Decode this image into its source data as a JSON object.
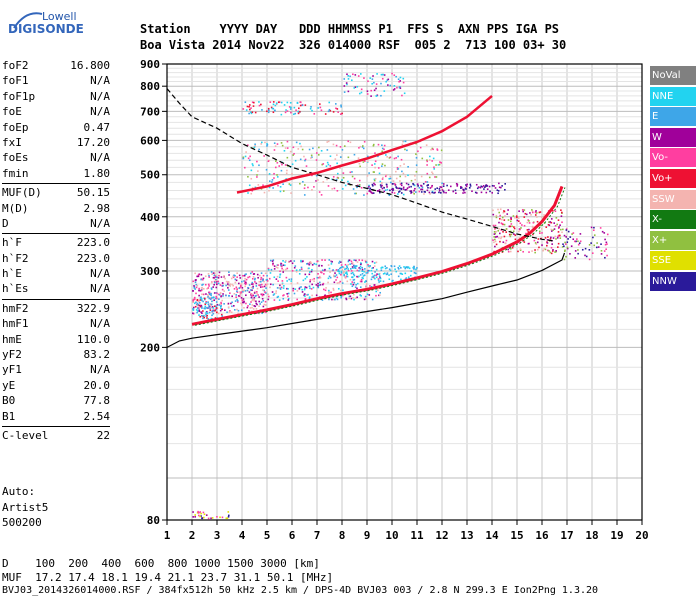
{
  "logo": {
    "line1": "Lowell",
    "line2": "DIGISONDE"
  },
  "header": {
    "labels": "Station    YYYY DAY   DDD HHMMSS P1  FFS S  AXN PPS IGA PS",
    "values": "Boa Vista 2014 Nov22  326 014000 RSF  005 2  713 100 03+ 30"
  },
  "params": [
    {
      "k": "foF2",
      "v": "16.800"
    },
    {
      "k": "foF1",
      "v": "N/A"
    },
    {
      "k": "foF1p",
      "v": "N/A"
    },
    {
      "k": "foE",
      "v": "N/A"
    },
    {
      "k": "foEp",
      "v": "0.47"
    },
    {
      "k": "fxI",
      "v": "17.20"
    },
    {
      "k": "foEs",
      "v": "N/A"
    },
    {
      "k": "fmin",
      "v": "1.80"
    },
    {
      "k": "MUF(D)",
      "v": "50.15"
    },
    {
      "k": "M(D)",
      "v": "2.98"
    },
    {
      "k": "D",
      "v": "N/A"
    },
    {
      "k": "h`F",
      "v": "223.0"
    },
    {
      "k": "h`F2",
      "v": "223.0"
    },
    {
      "k": "h`E",
      "v": "N/A"
    },
    {
      "k": "h`Es",
      "v": "N/A"
    },
    {
      "k": "hmF2",
      "v": "322.9"
    },
    {
      "k": "hmF1",
      "v": "N/A"
    },
    {
      "k": "hmE",
      "v": "110.0"
    },
    {
      "k": "yF2",
      "v": "83.2"
    },
    {
      "k": "yF1",
      "v": "N/A"
    },
    {
      "k": "yE",
      "v": "20.0"
    },
    {
      "k": "B0",
      "v": "77.8"
    },
    {
      "k": "B1",
      "v": "2.54"
    },
    {
      "k": "C-level",
      "v": "22"
    }
  ],
  "auto": {
    "l1": "Auto:",
    "l2": "Artist5",
    "l3": "500200"
  },
  "footer": {
    "d_row": "D    100  200  400  600  800 1000 1500 3000 [km]",
    "muf_row": "MUF  17.2 17.4 18.1 19.4 21.1 23.7 31.1 50.1 [MHz]",
    "info": "BVJ03_2014326014000.RSF / 384fx512h 50 kHz 2.5 km / DPS-4D BVJ03 003 / 2.8 N 299.3 E Ion2Png 1.3.20"
  },
  "legend": [
    {
      "label": "NoVal",
      "color": "#808080"
    },
    {
      "label": "NNE",
      "color": "#22d3f0"
    },
    {
      "label": "E",
      "color": "#3ea6e8"
    },
    {
      "label": "W",
      "color": "#a0009a"
    },
    {
      "label": "Vo-",
      "color": "#ff3ea0"
    },
    {
      "label": "Vo+",
      "color": "#ee1133"
    },
    {
      "label": "SSW",
      "color": "#f4b4b0"
    },
    {
      "label": "X-",
      "color": "#127a12"
    },
    {
      "label": "X+",
      "color": "#90c040"
    },
    {
      "label": "SSE",
      "color": "#e0e000"
    },
    {
      "label": "NNW",
      "color": "#2a1a9a"
    }
  ],
  "chart_data": {
    "type": "scatter",
    "title": "",
    "xlabel": "",
    "ylabel": "",
    "xlim": [
      1,
      20
    ],
    "ylim": [
      80,
      900
    ],
    "y_scale": "log",
    "x_ticks": [
      1,
      2,
      3,
      4,
      5,
      6,
      7,
      8,
      9,
      10,
      11,
      12,
      13,
      14,
      15,
      16,
      17,
      18,
      19,
      20
    ],
    "y_ticks": [
      80,
      200,
      300,
      400,
      500,
      600,
      700,
      800,
      900
    ],
    "grid": true,
    "legend_position": "right",
    "series": [
      {
        "name": "O-trace (Vo+)",
        "color": "#ee1133",
        "x": [
          2.0,
          3,
          4,
          5,
          6,
          7,
          8,
          9,
          10,
          11,
          12,
          13,
          14,
          15,
          15.5,
          16,
          16.5,
          16.8
        ],
        "y": [
          226,
          232,
          238,
          244,
          251,
          259,
          266,
          272,
          280,
          289,
          299,
          312,
          328,
          350,
          366,
          390,
          425,
          470
        ]
      },
      {
        "name": "Profile (fine)",
        "color": "#000000",
        "x": [
          1.0,
          1.5,
          2,
          3,
          4,
          5,
          6,
          7,
          8,
          9,
          10,
          11,
          12,
          13,
          14,
          15,
          16,
          16.8,
          16.9
        ],
        "y": [
          200,
          207,
          210,
          214,
          218,
          222,
          227,
          232,
          237,
          242,
          247,
          253,
          259,
          268,
          277,
          286,
          301,
          318,
          330
        ]
      },
      {
        "name": "MUF (dashed)",
        "color": "#000000",
        "x": [
          1.0,
          1.5,
          2,
          3,
          4,
          5,
          6,
          7,
          8,
          9,
          10,
          11,
          12,
          13,
          14,
          15,
          16,
          16.5
        ],
        "y": [
          790,
          730,
          680,
          640,
          590,
          555,
          520,
          500,
          480,
          465,
          450,
          430,
          410,
          395,
          380,
          365,
          355,
          352
        ]
      },
      {
        "name": "2-hop",
        "color": "#ee1133",
        "x": [
          3.8,
          5,
          6,
          7,
          8,
          9,
          10,
          11,
          12,
          13,
          14
        ],
        "y": [
          455,
          470,
          490,
          505,
          525,
          545,
          570,
          595,
          630,
          680,
          760
        ]
      }
    ]
  }
}
